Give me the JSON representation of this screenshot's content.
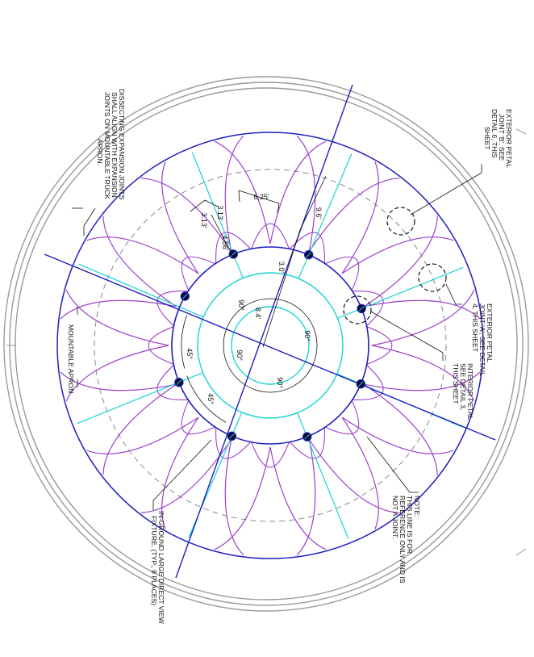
{
  "title": "",
  "drawing": {
    "colors": {
      "background": "#ffffff",
      "structure_blue": "#1f1fbf",
      "petal_purple": "#9a3fcc",
      "joint_cyan": "#19d3d3",
      "apron_gray": "#9a9a9a",
      "reference_dashed": "#888888",
      "annotation_black": "#111111",
      "fixture_fill": "#0b0b3a"
    },
    "callouts": {
      "exterior_petal_b": [
        "EXTERIOR PETAL",
        "JOINT 'B', SEE",
        "DETAIL 6, THIS",
        "SHEET"
      ],
      "exterior_petal_a": [
        "EXTERIOR PETAL",
        "JOINT 'A', SEE DETAIL",
        "4, THIS SHEET"
      ],
      "interior_petal": [
        "INTERIOR PETAL",
        "SEE DETAIL 3,",
        "THIS SHEET"
      ],
      "reference_note": [
        "NOTE:",
        "THIS LINE IS FOR",
        "REFERENCE ONLY AND IS",
        "NOT A JOINT."
      ],
      "fixture": [
        "IN-GROUND LARGE DIRECT VIEW",
        "FIXTURE. (TYP., 8 PLACES)"
      ],
      "dissecting": [
        "DISSECTING EXPANSION JOINTS",
        "SHALL ALIGN WITH EXPANSION",
        "JOINTS ON MOUNTABLE TRUCK",
        "APRON."
      ],
      "apron": "MOUNTABLE APRON"
    },
    "dimensions": {
      "width_top": "6.25'",
      "outer_radius": "9.6'",
      "mid_radius": "3.0'",
      "inner_radius": "8.4'",
      "petal_a": "4.56'",
      "petal_b": "3.13'",
      "petal_c": "3.13'",
      "angles": [
        "90°",
        "90°",
        "90°",
        "90°",
        "45°",
        "45°"
      ]
    }
  }
}
